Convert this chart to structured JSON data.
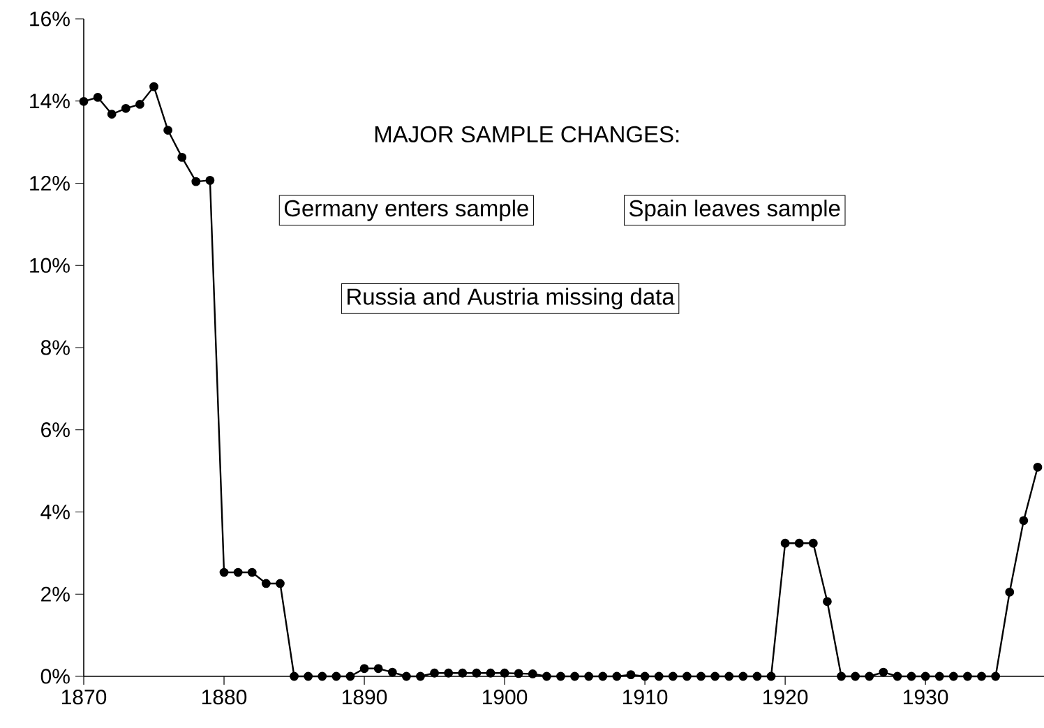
{
  "chart_data": {
    "type": "line",
    "x": [
      1870,
      1871,
      1872,
      1873,
      1874,
      1875,
      1876,
      1877,
      1878,
      1879,
      1880,
      1881,
      1882,
      1883,
      1884,
      1885,
      1886,
      1887,
      1888,
      1889,
      1890,
      1891,
      1892,
      1893,
      1894,
      1895,
      1896,
      1897,
      1898,
      1899,
      1900,
      1901,
      1902,
      1903,
      1904,
      1905,
      1906,
      1907,
      1908,
      1909,
      1910,
      1911,
      1912,
      1913,
      1914,
      1915,
      1916,
      1917,
      1918,
      1919,
      1920,
      1921,
      1922,
      1923,
      1924,
      1925,
      1926,
      1927,
      1928,
      1929,
      1930,
      1931,
      1932,
      1933,
      1934,
      1935,
      1936,
      1937,
      1938
    ],
    "values": [
      13.99,
      14.09,
      13.68,
      13.82,
      13.92,
      14.35,
      13.29,
      12.63,
      12.04,
      12.07,
      2.53,
      2.53,
      2.53,
      2.26,
      2.26,
      0,
      0,
      0,
      0,
      0,
      0.19,
      0.19,
      0.1,
      0,
      0,
      0.08,
      0.08,
      0.08,
      0.08,
      0.08,
      0.08,
      0.07,
      0.06,
      0,
      0,
      0,
      0,
      0,
      0,
      0.04,
      0,
      0,
      0,
      0,
      0,
      0,
      0,
      0,
      0,
      0,
      3.24,
      3.24,
      3.24,
      1.82,
      0,
      0,
      0,
      0.1,
      0,
      0,
      0,
      0,
      0,
      0,
      0,
      0,
      2.05,
      3.79,
      5.09
    ],
    "color": "#000000",
    "marker": "circle",
    "line_style": "solid",
    "grid": false,
    "xlim": [
      1870,
      1938.45
    ],
    "xticks": [
      1870,
      1880,
      1890,
      1900,
      1910,
      1920,
      1930
    ],
    "ylim": [
      0,
      16
    ],
    "yticks": [
      {
        "value": 0,
        "label": "0%"
      },
      {
        "value": 2,
        "label": "2%"
      },
      {
        "value": 4,
        "label": "4%"
      },
      {
        "value": 6,
        "label": "6%"
      },
      {
        "value": 8,
        "label": "8%"
      },
      {
        "value": 10,
        "label": "10%"
      },
      {
        "value": 12,
        "label": "12%"
      },
      {
        "value": 14,
        "label": "14%"
      },
      {
        "value": 16,
        "label": "16%"
      }
    ],
    "annotations": [
      "MAJOR SAMPLE CHANGES:",
      "Germany enters sample",
      "Spain leaves sample",
      "Russia and Austria missing data"
    ]
  }
}
